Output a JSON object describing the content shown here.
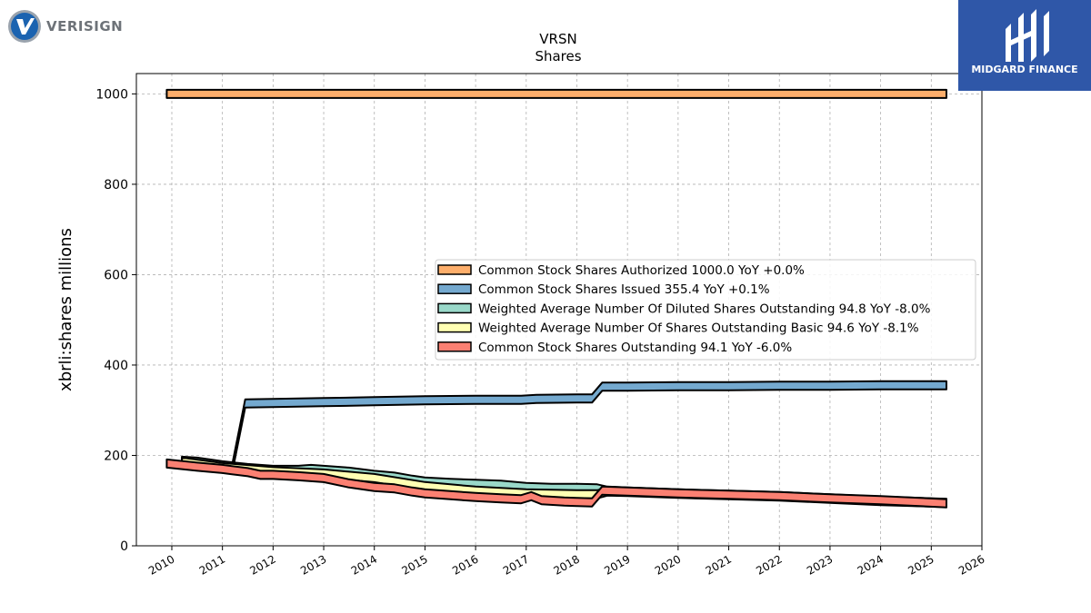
{
  "logos": {
    "left_text": "VERISIGN",
    "right_text": "MIDGARD FINANCE",
    "right_bg": "#2f57a8"
  },
  "chart_data": {
    "type": "area",
    "title": "VRSN",
    "subtitle": "Shares",
    "xlabel": "",
    "ylabel": "xbrli:shares millions",
    "xlim": [
      2009.3,
      2026.0
    ],
    "ylim": [
      0,
      1045
    ],
    "x_ticks": [
      "2010",
      "2011",
      "2012",
      "2013",
      "2014",
      "2015",
      "2016",
      "2017",
      "2018",
      "2019",
      "2020",
      "2021",
      "2022",
      "2023",
      "2024",
      "2025",
      "2026"
    ],
    "y_ticks": [
      0,
      200,
      400,
      600,
      800,
      1000
    ],
    "grid": true,
    "legend_position": "center-right",
    "series": [
      {
        "name": "Common Stock Shares Authorized",
        "legend": "Common Stock Shares Authorized  1000.0 YoY +0.0%",
        "color": "#fdae6b",
        "x": [
          2009.9,
          2025.3
        ],
        "values": [
          1000,
          1000
        ]
      },
      {
        "name": "Common Stock Shares Issued",
        "legend": "Common Stock Shares Issued  355.4 YoY +0.1%",
        "color": "#74a9cf",
        "x": [
          2011.2,
          2011.45,
          2012,
          2013,
          2014,
          2015,
          2016,
          2016.9,
          2017.2,
          2018.0,
          2018.3,
          2018.5,
          2019,
          2020,
          2021,
          2022,
          2023,
          2024,
          2025.3
        ],
        "values": [
          175,
          315,
          316,
          318,
          320,
          322,
          323,
          323,
          325,
          326,
          326,
          352,
          352,
          353,
          353,
          354,
          354,
          355,
          355.4
        ]
      },
      {
        "name": "Weighted Average Number Of Diluted Shares Outstanding",
        "legend": "Weighted Average Number Of Diluted Shares Outstanding  94.8 YoY -8.0%",
        "color": "#99d8c9",
        "x": [
          2010.2,
          2010.5,
          2011,
          2011.5,
          2012,
          2012.5,
          2012.75,
          2013,
          2013.5,
          2014,
          2014.4,
          2014.75,
          2015,
          2015.5,
          2016,
          2016.5,
          2017,
          2017.5,
          2018,
          2018.4,
          2018.6,
          2019,
          2020,
          2021,
          2022,
          2023,
          2024,
          2025.3
        ],
        "values": [
          188,
          186,
          178,
          172,
          168,
          168,
          170,
          168,
          164,
          157,
          153,
          146,
          142,
          139,
          137,
          135,
          130,
          128,
          128,
          127,
          122,
          120,
          116,
          113,
          110,
          105,
          100,
          94.8
        ]
      },
      {
        "name": "Weighted Average Number Of Shares Outstanding Basic",
        "legend": "Weighted Average Number Of Shares Outstanding Basic  94.6 YoY -8.1%",
        "color": "#ffffb3",
        "x": [
          2010.2,
          2011,
          2012,
          2013,
          2014,
          2015,
          2016,
          2017,
          2018,
          2018.4,
          2018.6,
          2019,
          2020,
          2021,
          2022,
          2023,
          2024,
          2025.3
        ],
        "values": [
          186,
          174,
          165,
          160,
          150,
          132,
          122,
          116,
          114,
          114,
          120,
          119,
          115,
          112,
          109,
          104,
          99,
          94.6
        ]
      },
      {
        "name": "Common Stock Shares Outstanding",
        "legend": "Common Stock Shares Outstanding  94.1 YoY -6.0%",
        "color": "#fb8072",
        "x": [
          2009.9,
          2010.5,
          2011,
          2011.5,
          2011.75,
          2012,
          2012.5,
          2013,
          2013.5,
          2014,
          2014.4,
          2014.75,
          2015,
          2015.5,
          2016,
          2016.5,
          2016.9,
          2017.1,
          2017.3,
          2017.75,
          2018,
          2018.3,
          2018.5,
          2019,
          2020,
          2021,
          2022,
          2023,
          2024,
          2025.3
        ],
        "values": [
          182,
          175,
          170,
          163,
          157,
          157,
          154,
          150,
          138,
          130,
          127,
          120,
          116,
          112,
          108,
          105,
          103,
          110,
          101,
          98,
          97,
          96,
          122,
          120,
          116,
          113,
          110,
          105,
          101,
          94.1
        ]
      }
    ]
  }
}
